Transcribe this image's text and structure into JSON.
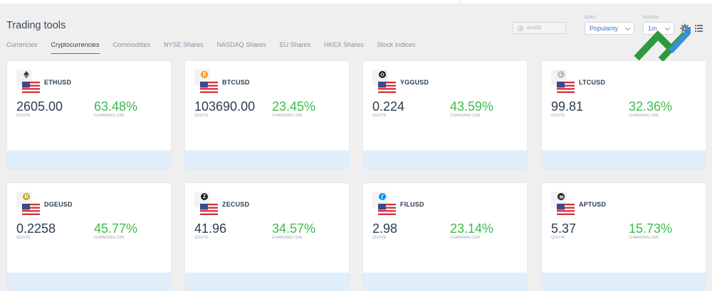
{
  "page": {
    "title": "Trading tools"
  },
  "tabs": [
    {
      "label": "Currencies",
      "active": false
    },
    {
      "label": "Cryptocurrencies",
      "active": true
    },
    {
      "label": "Commodities",
      "active": false
    },
    {
      "label": "NYSE Shares",
      "active": false
    },
    {
      "label": "NASDAQ Shares",
      "active": false
    },
    {
      "label": "EU Shares",
      "active": false
    },
    {
      "label": "HKEX Shares",
      "active": false
    },
    {
      "label": "Stock Indices",
      "active": false
    }
  ],
  "controls": {
    "guide_label": "GUIDE",
    "sort_label": "SORT",
    "sort_value": "Popularity",
    "period_label": "PERIOD",
    "period_value": "1m"
  },
  "card_labels": {
    "quote": "QUOTE",
    "changing": "CHANGING (1M)"
  },
  "cards": [
    {
      "symbol": "ETHUSD",
      "quote": "2605.00",
      "change": "63.48%",
      "coin_icon": "ethereum-icon",
      "coin_color": "#3c3c3d"
    },
    {
      "symbol": "BTCUSD",
      "quote": "103690.00",
      "change": "23.45%",
      "coin_icon": "bitcoin-icon",
      "coin_color": "#f7931a"
    },
    {
      "symbol": "YGGUSD",
      "quote": "0.224",
      "change": "43.59%",
      "coin_icon": "ygg-icon",
      "coin_color": "#1f1f1f"
    },
    {
      "symbol": "LTCUSD",
      "quote": "99.81",
      "change": "32.36%",
      "coin_icon": "litecoin-icon",
      "coin_color": "#bfbbbb"
    },
    {
      "symbol": "DGEUSD",
      "quote": "0.2258",
      "change": "45.77%",
      "coin_icon": "dogecoin-icon",
      "coin_color": "#c2a633"
    },
    {
      "symbol": "ZECUSD",
      "quote": "41.96",
      "change": "34.57%",
      "coin_icon": "zcash-icon",
      "coin_color": "#222222"
    },
    {
      "symbol": "FILUSD",
      "quote": "2.98",
      "change": "23.14%",
      "coin_icon": "filecoin-icon",
      "coin_color": "#0090ff"
    },
    {
      "symbol": "APTUSD",
      "quote": "5.37",
      "change": "15.73%",
      "coin_icon": "aptos-icon",
      "coin_color": "#222222"
    }
  ],
  "colors": {
    "positive": "#3dbb4c",
    "accent": "#3b78c9",
    "footer": "#dfeefa"
  }
}
